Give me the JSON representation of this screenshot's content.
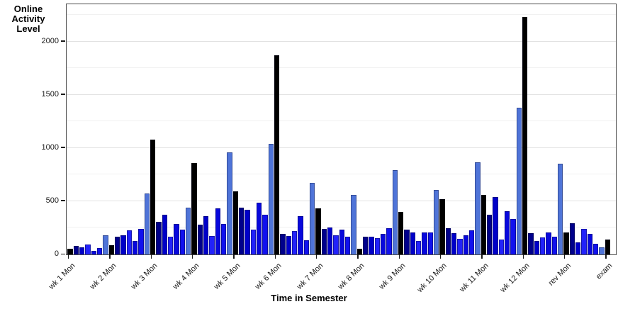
{
  "colors": {
    "monday_black": "#000000",
    "tuesday_navy": "#00008b",
    "weekday_blue": "#0d0de8",
    "sunday_light_blue": "#4f74d8",
    "panel_border": "#4a4a4a",
    "major_grid": "#e2e2e2",
    "minor_grid": "#f1f1f1"
  },
  "chart_data": {
    "type": "bar",
    "title": "",
    "y_axis": {
      "label_lines": [
        "Online",
        "Activity",
        "Level"
      ],
      "ticks": [
        0,
        500,
        1000,
        1500,
        2000
      ],
      "minor_step": 250,
      "min": 0,
      "max": 2350,
      "grid": true
    },
    "x_axis": {
      "label": "Time in Semester",
      "tick_labels": [
        "wk 1 Mon",
        "wk 2 Mon",
        "wk 3 Mon",
        "wk 4 Mon",
        "wk 5 Mon",
        "wk 6 Mon",
        "wk 7 Mon",
        "wk 8 Mon",
        "wk 9 Mon",
        "wk 10 Mon",
        "wk 11 Mon",
        "wk 12 Mon",
        "rev Mon",
        "exam"
      ]
    },
    "legend": "none",
    "bars_per_group_note": "7 daily bars per week group starting at Monday (black); Sunday is the light blue bar; exam group has a single black bar",
    "day_colors": [
      "#000000",
      "#00008b",
      "#0000c8",
      "#2222fa",
      "#0808dc",
      "#1111ee",
      "#4f74d8"
    ],
    "groups": [
      {
        "label": "wk 1 Mon",
        "values": [
          55,
          80,
          65,
          92,
          31,
          60,
          178
        ]
      },
      {
        "label": "wk 2 Mon",
        "values": [
          87,
          169,
          182,
          227,
          124,
          242,
          575
        ]
      },
      {
        "label": "wk 3 Mon",
        "values": [
          1080,
          304,
          375,
          169,
          287,
          236,
          437
        ]
      },
      {
        "label": "wk 4 Mon",
        "values": [
          860,
          280,
          358,
          170,
          436,
          287,
          958
        ]
      },
      {
        "label": "wk 5 Mon",
        "values": [
          590,
          442,
          420,
          236,
          487,
          371,
          1040
        ]
      },
      {
        "label": "wk 6 Mon",
        "values": [
          1870,
          193,
          171,
          220,
          360,
          131,
          675
        ]
      },
      {
        "label": "wk 7 Mon",
        "values": [
          436,
          242,
          253,
          178,
          236,
          169,
          558
        ]
      },
      {
        "label": "wk 8 Mon",
        "values": [
          55,
          169,
          164,
          153,
          193,
          247,
          790
        ]
      },
      {
        "label": "wk 9 Mon",
        "values": [
          402,
          231,
          209,
          124,
          209,
          209,
          609
        ]
      },
      {
        "label": "wk 10 Mon",
        "values": [
          520,
          249,
          202,
          149,
          182,
          224,
          864
        ]
      },
      {
        "label": "wk 11 Mon",
        "values": [
          558,
          376,
          538,
          142,
          409,
          331,
          1380
        ]
      },
      {
        "label": "wk 12 Mon",
        "values": [
          2230,
          202,
          127,
          158,
          204,
          169,
          849
        ]
      },
      {
        "label": "rev Mon",
        "values": [
          209,
          291,
          113,
          238,
          191,
          98,
          70
        ]
      },
      {
        "label": "exam",
        "values": [
          142
        ]
      }
    ]
  }
}
